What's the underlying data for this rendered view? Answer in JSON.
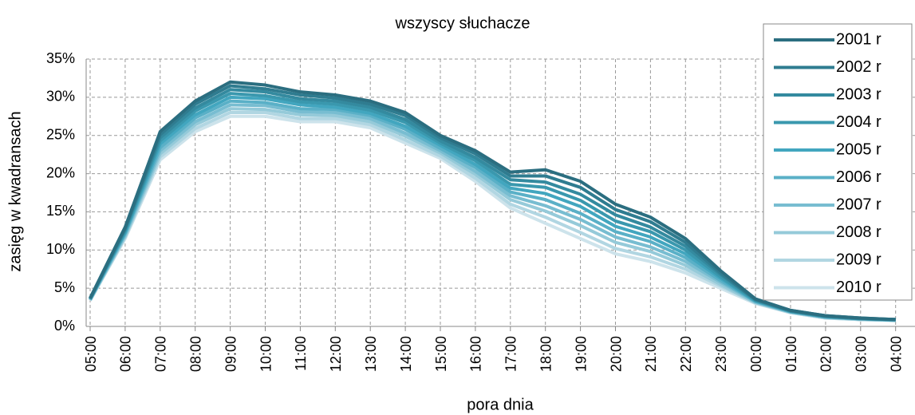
{
  "chart_data": {
    "type": "line",
    "title": "wszyscy słuchacze",
    "x_label": "pora dnia",
    "y_label": "zasięg w kwadransach",
    "categories": [
      "05:00",
      "06:00",
      "07:00",
      "08:00",
      "09:00",
      "10:00",
      "11:00",
      "12:00",
      "13:00",
      "14:00",
      "15:00",
      "16:00",
      "17:00",
      "18:00",
      "19:00",
      "20:00",
      "21:00",
      "22:00",
      "23:00",
      "00:00",
      "01:00",
      "02:00",
      "03:00",
      "04:00"
    ],
    "ylim": [
      0,
      35
    ],
    "yticks": [
      {
        "value": 0,
        "label": "0%"
      },
      {
        "value": 5,
        "label": "5%"
      },
      {
        "value": 10,
        "label": "10%"
      },
      {
        "value": 15,
        "label": "15%"
      },
      {
        "value": 20,
        "label": "20%"
      },
      {
        "value": 25,
        "label": "25%"
      },
      {
        "value": 30,
        "label": "30%"
      },
      {
        "value": 35,
        "label": "35%"
      }
    ],
    "grid": true,
    "legend": "upper right",
    "series": [
      {
        "name": "2001 r",
        "color": "#2b6e80",
        "values": [
          3.7,
          13.0,
          25.5,
          29.5,
          32,
          31.6,
          30.7,
          30.3,
          29.5,
          28,
          25,
          23,
          20.2,
          20.5,
          19,
          16,
          14.3,
          11.5,
          7.3,
          3.6,
          2.1,
          1.4,
          1.1,
          0.9
        ]
      },
      {
        "name": "2002 r",
        "color": "#2f7c90",
        "values": [
          3.7,
          12.8,
          25.1,
          29.1,
          31.5,
          31.1,
          30.3,
          29.9,
          29.1,
          27.6,
          24.7,
          22.6,
          19.7,
          19.7,
          18.2,
          15.3,
          13.7,
          11,
          7.0,
          3.5,
          2.1,
          1.4,
          1.1,
          0.9
        ]
      },
      {
        "name": "2003 r",
        "color": "#348a9f",
        "values": [
          3.6,
          12.7,
          24.7,
          28.6,
          31,
          30.7,
          29.8,
          29.5,
          28.7,
          27.1,
          24.3,
          22.1,
          19.2,
          18.9,
          17.3,
          14.6,
          13.0,
          10.5,
          6.8,
          3.5,
          2.0,
          1.3,
          1.0,
          0.9
        ]
      },
      {
        "name": "2004 r",
        "color": "#3a98ae",
        "values": [
          3.6,
          12.5,
          24.3,
          28.2,
          30.5,
          30.2,
          29.4,
          29.1,
          28.3,
          26.7,
          24,
          21.7,
          18.6,
          18.2,
          16.5,
          13.8,
          12.4,
          10,
          6.5,
          3.4,
          2.0,
          1.3,
          1.0,
          0.9
        ]
      },
      {
        "name": "2005 r",
        "color": "#42a6bf",
        "values": [
          3.6,
          12.3,
          23.9,
          27.7,
          30,
          29.8,
          29.0,
          28.7,
          27.9,
          26.2,
          23.7,
          21.2,
          18.1,
          17.4,
          15.7,
          13.1,
          11.7,
          9.5,
          6.3,
          3.3,
          2.0,
          1.3,
          1.0,
          0.9
        ]
      },
      {
        "name": "2006 r",
        "color": "#5ab0c7",
        "values": [
          3.5,
          12.2,
          23.4,
          27.3,
          29.5,
          29.3,
          28.5,
          28.4,
          27.6,
          25.8,
          23.3,
          20.8,
          17.6,
          16.6,
          14.8,
          12.4,
          11.1,
          9,
          6.0,
          3.3,
          1.9,
          1.2,
          1.0,
          0.8
        ]
      },
      {
        "name": "2007 r",
        "color": "#78bdd1",
        "values": [
          3.5,
          12.0,
          23.0,
          26.8,
          29,
          28.9,
          28.1,
          28.0,
          27.2,
          25.3,
          23,
          20.3,
          17.1,
          15.8,
          14,
          11.7,
          10.4,
          8.5,
          5.8,
          3.2,
          1.9,
          1.2,
          1.0,
          0.8
        ]
      },
      {
        "name": "2008 r",
        "color": "#95cad9",
        "values": [
          3.5,
          11.8,
          22.6,
          26.4,
          28.5,
          28.4,
          27.7,
          27.6,
          26.8,
          24.9,
          22.7,
          19.9,
          16.6,
          15.1,
          13.2,
          11,
          9.8,
          8,
          5.5,
          3.1,
          1.9,
          1.2,
          0.9,
          0.8
        ]
      },
      {
        "name": "2009 r",
        "color": "#b1d6e2",
        "values": [
          3.4,
          11.7,
          22.2,
          25.9,
          28,
          28.0,
          27.2,
          27.2,
          26.4,
          24.4,
          22.3,
          19.4,
          16.0,
          14.3,
          12.3,
          10.2,
          9.1,
          7.5,
          5.3,
          3.1,
          1.8,
          1.1,
          0.9,
          0.8
        ]
      },
      {
        "name": "2010 r",
        "color": "#cde3eb",
        "values": [
          3.4,
          11.5,
          21.8,
          25.5,
          27.5,
          27.5,
          26.8,
          26.8,
          26,
          24,
          22,
          19,
          15.5,
          13.5,
          11.5,
          9.5,
          8.5,
          7,
          5,
          3,
          1.8,
          1.1,
          0.9,
          0.8
        ]
      }
    ]
  }
}
